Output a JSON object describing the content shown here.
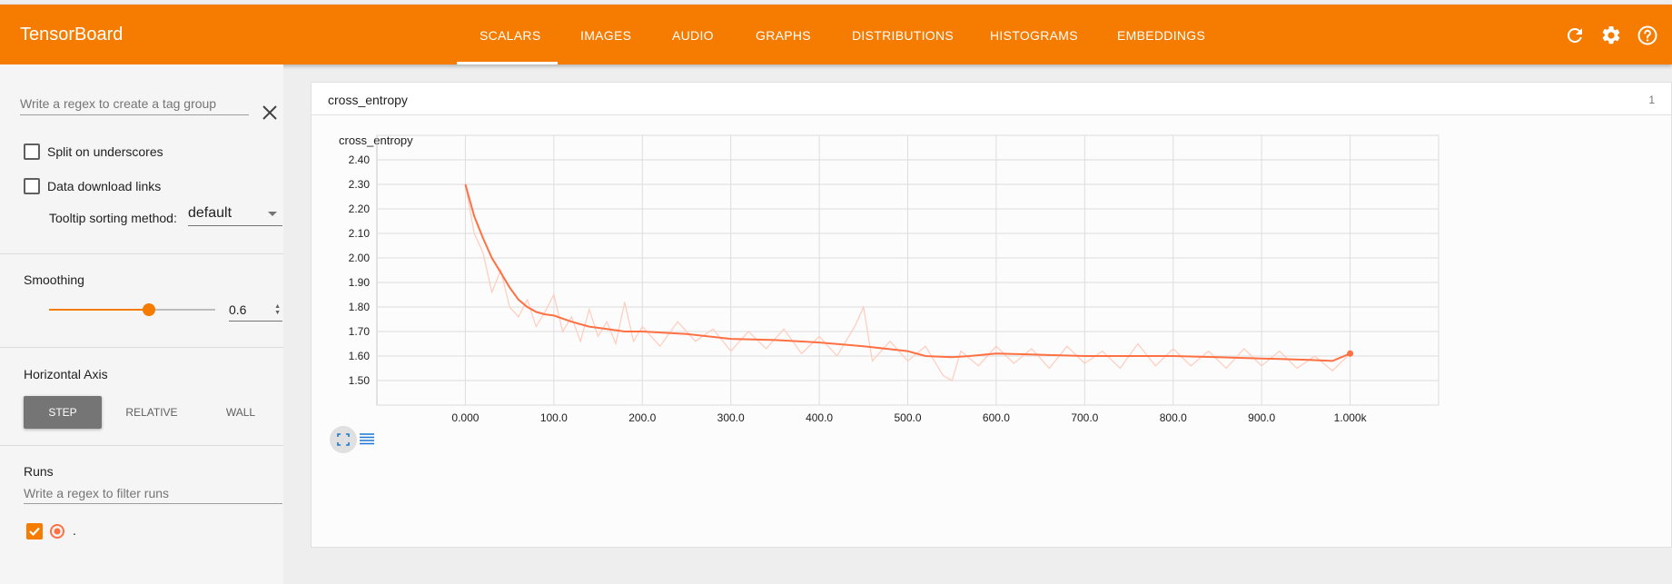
{
  "app": {
    "brand": "TensorBoard"
  },
  "tabs": [
    {
      "label": "SCALARS",
      "active": true
    },
    {
      "label": "IMAGES"
    },
    {
      "label": "AUDIO"
    },
    {
      "label": "GRAPHS"
    },
    {
      "label": "DISTRIBUTIONS"
    },
    {
      "label": "HISTOGRAMS"
    },
    {
      "label": "EMBEDDINGS"
    }
  ],
  "toolbar_icons": [
    "refresh-icon",
    "gear-icon",
    "help-icon"
  ],
  "sidebar": {
    "tag_regex_placeholder": "Write a regex to create a tag group",
    "split_underscores_label": "Split on underscores",
    "data_download_label": "Data download links",
    "tooltip_sorting_label": "Tooltip sorting method:",
    "tooltip_sorting_value": "default",
    "smoothing_label": "Smoothing",
    "smoothing_value": "0.6",
    "smoothing_fraction": 0.6,
    "horizontal_axis_label": "Horizontal Axis",
    "axis_options": [
      {
        "label": "STEP",
        "active": true
      },
      {
        "label": "RELATIVE"
      },
      {
        "label": "WALL"
      }
    ],
    "runs_label": "Runs",
    "runs_filter_placeholder": "Write a regex to filter runs",
    "run_name": "."
  },
  "card": {
    "title": "cross_entropy",
    "count": "1"
  },
  "colors": {
    "accent": "#f57c00",
    "smoothed_line": "#ff7043",
    "raw_line": "#ffccbc"
  },
  "chart_data": {
    "type": "line",
    "title": "cross_entropy",
    "xlabel": "",
    "ylabel": "",
    "xlim": [
      -100,
      1100
    ],
    "ylim": [
      1.4,
      2.5
    ],
    "x_ticks": [
      0,
      100,
      200,
      300,
      400,
      500,
      600,
      700,
      800,
      900,
      1000
    ],
    "x_tick_labels": [
      "0.000",
      "100.0",
      "200.0",
      "300.0",
      "400.0",
      "500.0",
      "600.0",
      "700.0",
      "800.0",
      "900.0",
      "1.000k"
    ],
    "y_ticks": [
      1.5,
      1.6,
      1.7,
      1.8,
      1.9,
      2.0,
      2.1,
      2.2,
      2.3,
      2.4
    ],
    "y_tick_labels": [
      "1.50",
      "1.60",
      "1.70",
      "1.80",
      "1.90",
      "2.00",
      "2.10",
      "2.20",
      "2.30",
      "2.40"
    ],
    "grid": true,
    "series": [
      {
        "kind": "smoothed",
        "x": [
          0,
          10,
          20,
          30,
          40,
          50,
          60,
          70,
          80,
          90,
          100,
          120,
          140,
          160,
          180,
          200,
          250,
          300,
          350,
          400,
          450,
          500,
          520,
          550,
          570,
          600,
          650,
          700,
          750,
          800,
          850,
          900,
          950,
          980,
          1000
        ],
        "y": [
          2.3,
          2.17,
          2.08,
          2.0,
          1.94,
          1.88,
          1.83,
          1.8,
          1.78,
          1.77,
          1.765,
          1.74,
          1.72,
          1.71,
          1.7,
          1.7,
          1.69,
          1.67,
          1.665,
          1.655,
          1.64,
          1.62,
          1.6,
          1.595,
          1.6,
          1.61,
          1.605,
          1.6,
          1.6,
          1.6,
          1.595,
          1.59,
          1.585,
          1.58,
          1.61
        ]
      },
      {
        "kind": "raw",
        "x": [
          0,
          10,
          20,
          30,
          40,
          50,
          60,
          70,
          80,
          90,
          100,
          110,
          120,
          130,
          140,
          150,
          160,
          170,
          180,
          190,
          200,
          220,
          240,
          260,
          280,
          300,
          320,
          340,
          360,
          380,
          400,
          420,
          440,
          450,
          460,
          480,
          500,
          520,
          540,
          550,
          560,
          580,
          600,
          620,
          640,
          660,
          680,
          700,
          720,
          740,
          760,
          780,
          800,
          820,
          840,
          860,
          880,
          900,
          920,
          940,
          960,
          980,
          1000
        ],
        "y": [
          2.3,
          2.1,
          2.02,
          1.86,
          1.95,
          1.8,
          1.76,
          1.83,
          1.72,
          1.78,
          1.85,
          1.7,
          1.76,
          1.66,
          1.79,
          1.68,
          1.74,
          1.65,
          1.82,
          1.66,
          1.72,
          1.64,
          1.74,
          1.66,
          1.71,
          1.62,
          1.7,
          1.63,
          1.71,
          1.61,
          1.68,
          1.6,
          1.72,
          1.8,
          1.58,
          1.66,
          1.58,
          1.64,
          1.52,
          1.5,
          1.62,
          1.56,
          1.64,
          1.57,
          1.63,
          1.55,
          1.64,
          1.57,
          1.62,
          1.55,
          1.65,
          1.56,
          1.63,
          1.56,
          1.62,
          1.55,
          1.63,
          1.56,
          1.62,
          1.55,
          1.6,
          1.54,
          1.61
        ]
      }
    ]
  }
}
